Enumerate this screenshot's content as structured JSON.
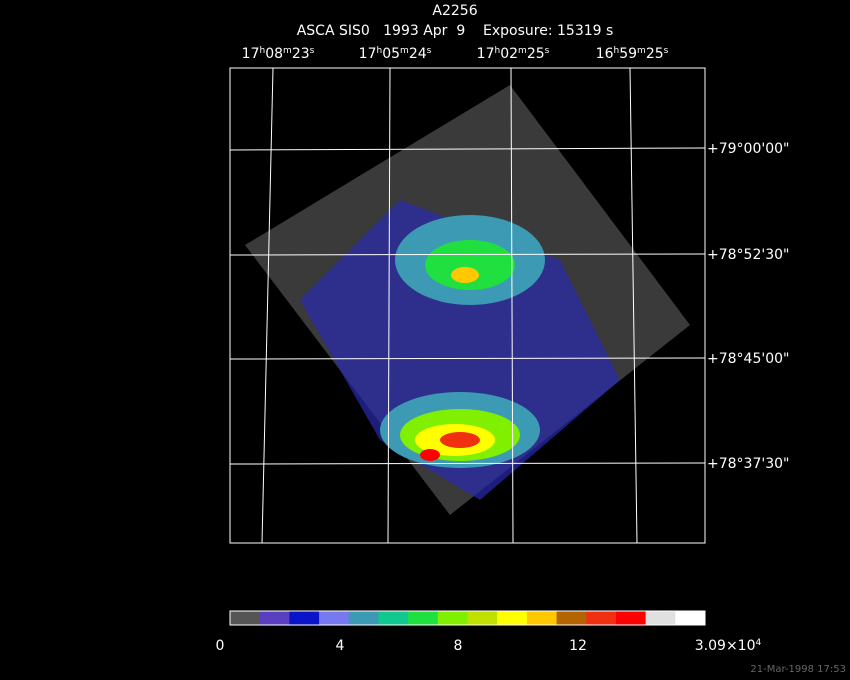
{
  "title": "A2256",
  "subtitle": "ASCA SIS0   1993 Apr  9    Exposure: 15319 s",
  "ra_labels": [
    [
      "17",
      "h",
      "08",
      "m",
      "23",
      "s"
    ],
    [
      "17",
      "h",
      "05",
      "m",
      "24",
      "s"
    ],
    [
      "17",
      "h",
      "02",
      "m",
      "25",
      "s"
    ],
    [
      "16",
      "h",
      "59",
      "m",
      "25",
      "s"
    ]
  ],
  "dec_labels": [
    "+79°00'00\"",
    "+78°52'30\"",
    "+78°45'00\"",
    "+78°37'30\""
  ],
  "colorbar": {
    "colors": [
      "#555555",
      "#5a3fc0",
      "#0a14c8",
      "#7878f0",
      "#3c9ab4",
      "#10c890",
      "#20e040",
      "#80f000",
      "#c0e000",
      "#ffff00",
      "#ffc800",
      "#b46400",
      "#f03010",
      "#ff0000",
      "#e0e0e0",
      "#ffffff"
    ],
    "labels": [
      "0",
      "4",
      "8",
      "12"
    ],
    "max_label": [
      "3.09×10",
      "4"
    ]
  },
  "timestamp": "21-Mar-1998 17:53"
}
